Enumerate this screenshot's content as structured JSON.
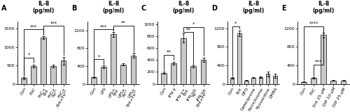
{
  "chart_data": [
    {
      "type": "bar",
      "panel_label": "A",
      "title": "IL-8\n(pg/ml)",
      "categories": [
        "Con",
        "FliC",
        "FliC+\nEnt",
        "FliC+\nFe³⁺",
        "FliC+\nEnt+Fe³⁺"
      ],
      "values": [
        155,
        490,
        1260,
        490,
        635
      ],
      "errors": [
        28,
        38,
        38,
        38,
        105
      ],
      "ylim": [
        0,
        1700
      ],
      "yticks": [
        0,
        500,
        1000,
        1500
      ],
      "color": "#c8c8c8",
      "annotations": [
        {
          "x1": 0,
          "x2": 1,
          "y": 720,
          "text": "*"
        },
        {
          "x1": 0,
          "x2": 2,
          "y": 1490,
          "text": "***"
        },
        {
          "x1": 2,
          "x2": 4,
          "y": 1580,
          "text": "***"
        }
      ]
    },
    {
      "type": "bar",
      "panel_label": "B",
      "title": "IL-8\n(pg/ml)",
      "categories": [
        "Con",
        "LPS",
        "LPS+\nEnt",
        "LPS+\nFe³⁺",
        "LPS+\nEnt+Fe³⁺"
      ],
      "values": [
        145,
        385,
        1110,
        435,
        635
      ],
      "errors": [
        18,
        28,
        55,
        28,
        55
      ],
      "ylim": [
        0,
        1400
      ],
      "yticks": [
        0,
        400,
        800,
        1200
      ],
      "color": "#c8c8c8",
      "annotations": [
        {
          "x1": 0,
          "x2": 1,
          "y": 550,
          "text": "*"
        },
        {
          "x1": 0,
          "x2": 2,
          "y": 1220,
          "text": "***"
        },
        {
          "x1": 2,
          "x2": 4,
          "y": 1310,
          "text": "**"
        }
      ]
    },
    {
      "type": "bar",
      "panel_label": "C",
      "title": "IL-8\n(pg/ml)",
      "categories": [
        "Con",
        "IFN-γ",
        "IFN-γ+\nEnt",
        "IFN-γ+\nFe³⁺",
        "IFN-γ+\nEnt+Fe³⁺"
      ],
      "values": [
        185,
        345,
        770,
        295,
        405
      ],
      "errors": [
        18,
        28,
        75,
        22,
        38
      ],
      "ylim": [
        0,
        1050
      ],
      "yticks": [
        0,
        200,
        400,
        600,
        800,
        1000
      ],
      "color": "#c8c8c8",
      "annotations": [
        {
          "x1": 0,
          "x2": 1,
          "y": 490,
          "text": "**"
        },
        {
          "x1": 2,
          "x2": 3,
          "y": 870,
          "text": "**"
        },
        {
          "x1": 2,
          "x2": 4,
          "y": 960,
          "text": "*"
        }
      ]
    },
    {
      "type": "bar",
      "panel_label": "D",
      "title": "IL-8\n(pg/ml)",
      "categories": [
        "Con",
        "Ent",
        "DFO",
        "Deferiprone",
        "Ferrichrome",
        "Pyoverdine",
        "DHBA"
      ],
      "values": [
        125,
        1095,
        75,
        135,
        145,
        215,
        175
      ],
      "errors": [
        18,
        65,
        8,
        12,
        18,
        55,
        45
      ],
      "ylim": [
        0,
        1350
      ],
      "yticks": [
        0,
        400,
        800,
        1200
      ],
      "color": "#c8c8c8",
      "annotations": [
        {
          "x1": 0,
          "x2": 1,
          "y": 1250,
          "text": "*"
        }
      ]
    },
    {
      "type": "bar",
      "panel_label": "E",
      "title": "IL-8\n(pg/ml)",
      "categories": [
        "Con",
        "FliC",
        "Ent 25 µM",
        "DIP 10 µM",
        "DIP 25 µM"
      ],
      "values": [
        45,
        125,
        1060,
        75,
        75
      ],
      "errors": [
        8,
        18,
        55,
        12,
        12
      ],
      "ylim": [
        0,
        1350
      ],
      "yticks": [
        0,
        400,
        800,
        1200
      ],
      "color": "#c8c8c8",
      "annotations": [
        {
          "x1": 0,
          "x2": 2,
          "y": 1245,
          "text": "****"
        },
        {
          "x1": 1,
          "x2": 2,
          "y": 420,
          "text": "***"
        }
      ]
    }
  ]
}
